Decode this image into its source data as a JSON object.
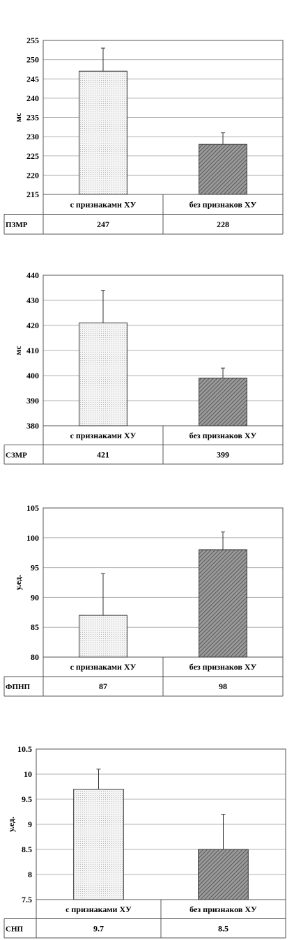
{
  "chart_data": [
    {
      "type": "bar",
      "categories": [
        "с признаками ХУ",
        "без признаков ХУ"
      ],
      "values": [
        247,
        228
      ],
      "errors": [
        6,
        3
      ],
      "ylabel": "мс",
      "ylim": [
        215,
        255
      ],
      "yticks": [
        "215",
        "220",
        "225",
        "230",
        "235",
        "240",
        "245",
        "250",
        "255"
      ],
      "grid": true,
      "table": {
        "row_label": "ПЗМР",
        "values": [
          "247",
          "228"
        ]
      },
      "bar_styles": [
        "dotted",
        "hatched"
      ]
    },
    {
      "type": "bar",
      "categories": [
        "с признаками ХУ",
        "без признаков ХУ"
      ],
      "values": [
        421,
        399
      ],
      "errors": [
        13,
        4
      ],
      "ylabel": "мс",
      "ylim": [
        380,
        440
      ],
      "yticks": [
        "380",
        "390",
        "400",
        "410",
        "420",
        "430",
        "440"
      ],
      "grid": true,
      "table": {
        "row_label": "СЗМР",
        "values": [
          "421",
          "399"
        ]
      },
      "bar_styles": [
        "dotted",
        "hatched"
      ]
    },
    {
      "type": "bar",
      "categories": [
        "с признаками ХУ",
        "без признаков ХУ"
      ],
      "values": [
        87,
        98
      ],
      "errors": [
        7,
        3
      ],
      "ylabel": "у.ед.",
      "ylim": [
        80,
        105
      ],
      "yticks": [
        "80",
        "85",
        "90",
        "95",
        "100",
        "105"
      ],
      "grid": true,
      "table": {
        "row_label": "ФПНП",
        "values": [
          "87",
          "98"
        ]
      },
      "bar_styles": [
        "dotted",
        "hatched"
      ]
    },
    {
      "type": "bar",
      "categories": [
        "с признаками ХУ",
        "без признаков ХУ"
      ],
      "values": [
        9.7,
        8.5
      ],
      "errors": [
        0.4,
        0.7
      ],
      "ylabel": "у.ед.",
      "ylim": [
        7.5,
        10.5
      ],
      "yticks": [
        "7.5",
        "8",
        "8.5",
        "9",
        "9.5",
        "10",
        "10.5"
      ],
      "grid": true,
      "table": {
        "row_label": "СНП",
        "values": [
          "9.7",
          "8.5"
        ]
      },
      "bar_styles": [
        "dotted",
        "hatched"
      ]
    }
  ],
  "colors": {
    "dotted_bar_fill": "#f2f2f2",
    "hatched_bar_fill": "#8a8a8a",
    "grid": "#b0b0b0",
    "border": "#555555"
  }
}
